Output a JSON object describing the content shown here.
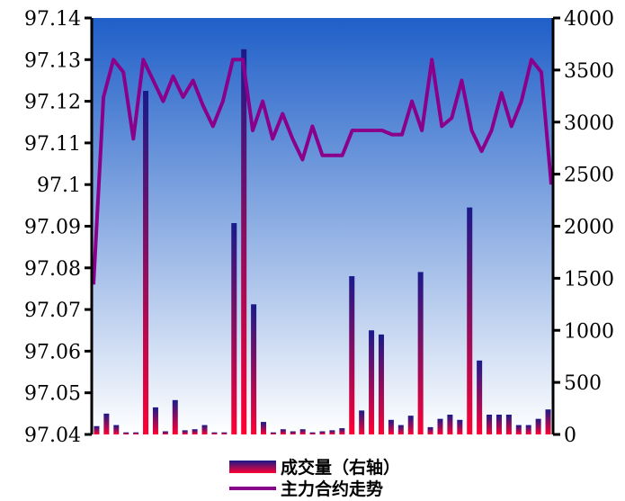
{
  "chart_data": {
    "type": "bar+line",
    "title": "",
    "left_axis": {
      "ylim": [
        97.04,
        97.14
      ],
      "ticks": [
        "97.04",
        "97.05",
        "97.06",
        "97.07",
        "97.08",
        "97.09",
        "97.1",
        "97.11",
        "97.12",
        "97.13",
        "97.14"
      ]
    },
    "right_axis": {
      "ylim": [
        0,
        4000
      ],
      "ticks": [
        "0",
        "500",
        "1000",
        "1500",
        "2000",
        "2500",
        "3000",
        "3500",
        "4000"
      ]
    },
    "legend_position": "bottom",
    "series": [
      {
        "name": "成交量（右轴）",
        "kind": "bar",
        "axis": "right",
        "values": [
          80,
          200,
          90,
          20,
          20,
          3300,
          260,
          30,
          330,
          40,
          50,
          90,
          20,
          20,
          2030,
          3700,
          1250,
          120,
          20,
          50,
          30,
          50,
          20,
          30,
          40,
          60,
          1520,
          230,
          1000,
          960,
          140,
          90,
          180,
          1560,
          70,
          150,
          190,
          140,
          2180,
          710,
          190,
          190,
          190,
          90,
          90,
          150,
          240
        ]
      },
      {
        "name": "主力合约走势",
        "kind": "line",
        "axis": "left",
        "values": [
          97.076,
          97.121,
          97.13,
          97.127,
          97.111,
          97.13,
          97.125,
          97.12,
          97.126,
          97.121,
          97.125,
          97.119,
          97.114,
          97.12,
          97.13,
          97.13,
          97.113,
          97.12,
          97.111,
          97.117,
          97.111,
          97.106,
          97.114,
          97.107,
          97.107,
          97.107,
          97.113,
          97.113,
          97.113,
          97.113,
          97.112,
          97.112,
          97.12,
          97.113,
          97.13,
          97.114,
          97.116,
          97.125,
          97.113,
          97.108,
          97.113,
          97.122,
          97.114,
          97.12,
          97.13,
          97.127,
          97.1
        ]
      }
    ]
  },
  "colors": {
    "bg_top": "#1f5fc8",
    "bg_bottom": "#ffffff",
    "bar_top": "#1a1a8a",
    "bar_bottom": "#ff0033",
    "line": "#8b008b"
  }
}
